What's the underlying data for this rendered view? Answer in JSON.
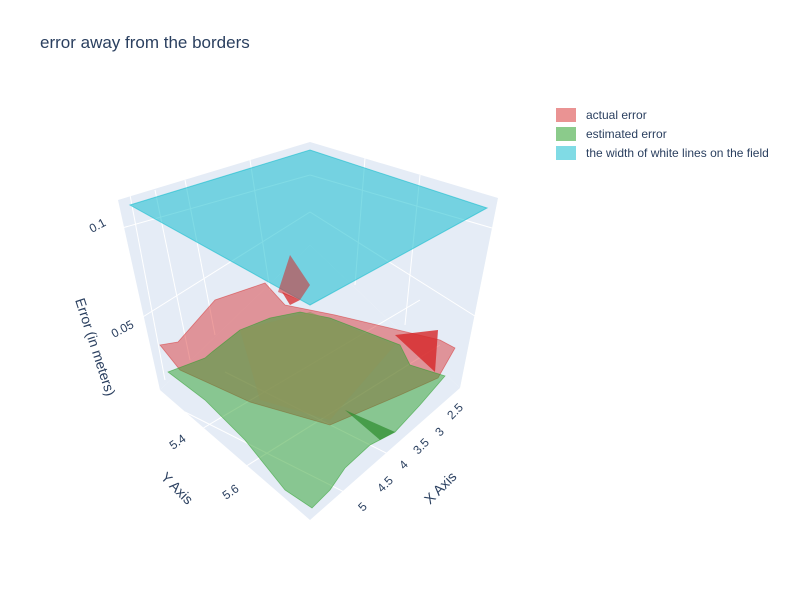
{
  "chart_data": {
    "type": "surface3d",
    "title": "error away from the borders",
    "axes": {
      "x": {
        "label": "X Axis",
        "ticks": [
          "2.5",
          "3",
          "3.5",
          "4",
          "4.5",
          "5"
        ]
      },
      "y": {
        "label": "Y Axis",
        "ticks": [
          "5.4",
          "5.6"
        ]
      },
      "z": {
        "label": "Error (in meters)",
        "ticks": [
          "0.05",
          "0.1"
        ]
      }
    },
    "series": [
      {
        "name": "actual error",
        "color": "#d62728",
        "z_range": [
          0.025,
          0.07
        ]
      },
      {
        "name": "estimated error",
        "color": "#2ca02c",
        "z_range": [
          0.018,
          0.057
        ]
      },
      {
        "name": "the width of white lines on the field",
        "color": "#17becf",
        "z": 0.1
      }
    ],
    "grid": true,
    "legend_position": "top-right"
  }
}
